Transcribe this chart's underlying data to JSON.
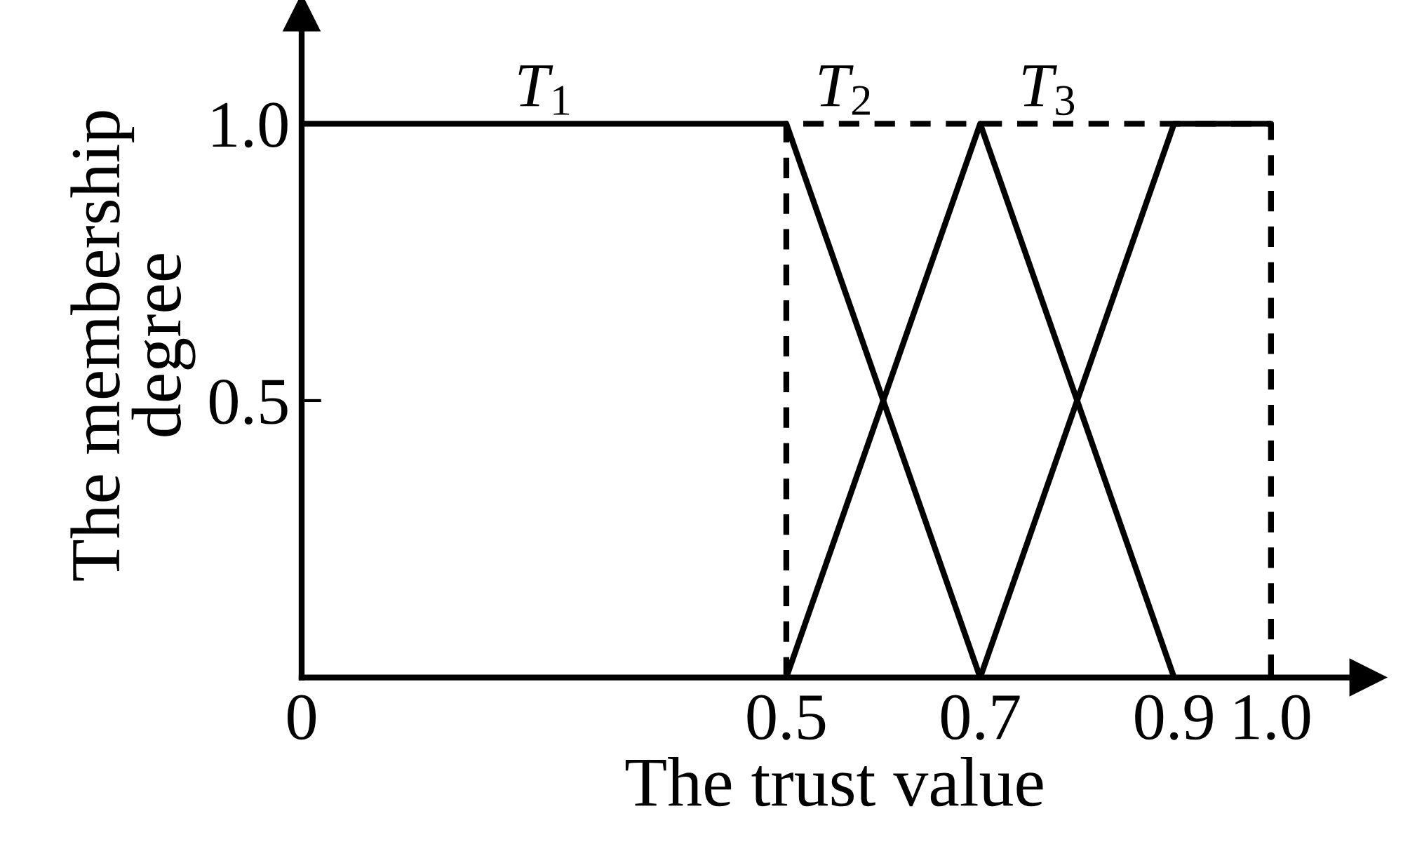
{
  "chart_data": {
    "type": "line",
    "xlabel": "The trust value",
    "ylabel": "The membership\ndegree",
    "series": [
      {
        "color": "#000000",
        "x": [
          0,
          0.5,
          0.7
        ],
        "values": [
          1,
          1,
          0
        ]
      },
      {
        "color": "#000000",
        "x": [
          0.5,
          0.7,
          0.9
        ],
        "values": [
          0,
          1,
          0
        ]
      },
      {
        "color": "#000000",
        "x": [
          0.7,
          0.9,
          1.0
        ],
        "values": [
          0,
          1,
          1
        ]
      },
      {
        "color": "#000000",
        "x": [
          0.5,
          0.5,
          1.0,
          1.0
        ],
        "values": [
          0,
          1,
          1,
          0
        ],
        "line_style": "dashed"
      }
    ],
    "annotations": [
      {
        "text": "T$_{1}$",
        "x": 0.25,
        "y": 1
      },
      {
        "text": "T$_{2}$",
        "x": 0.56,
        "y": 1
      },
      {
        "text": "T$_{3}$",
        "x": 0.77,
        "y": 1
      }
    ],
    "line_style": "solid",
    "xlim": [
      0,
      1.1
    ],
    "ylim": [
      0,
      1.2
    ],
    "xticks": [
      0,
      0.5,
      0.7,
      0.9,
      {
        "value": 1.0,
        "label": "1.0"
      }
    ],
    "yticks": [
      0.5,
      {
        "value": 1.0,
        "label": "1.0"
      }
    ]
  }
}
